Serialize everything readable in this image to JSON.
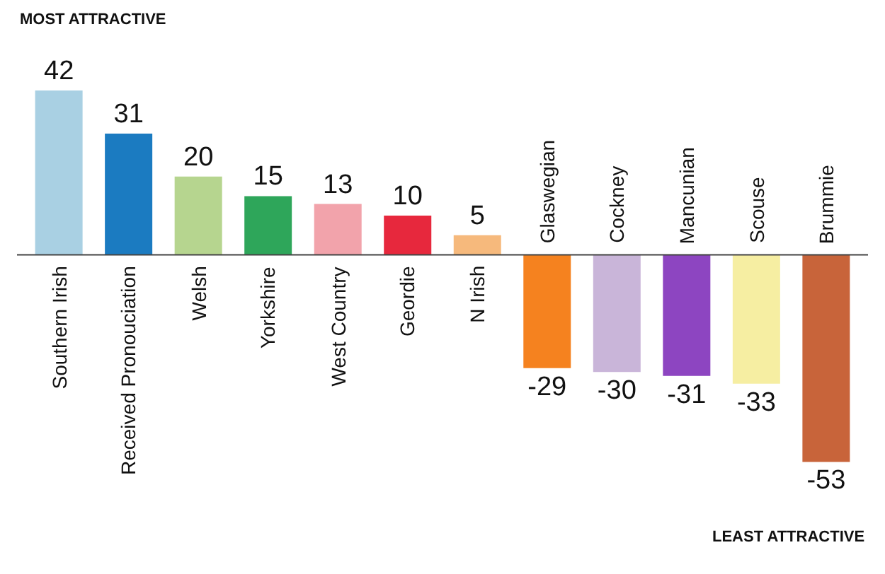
{
  "chart_data": {
    "type": "bar",
    "categories": [
      "Southern Irish",
      "Received Pronouciation",
      "Welsh",
      "Yorkshire",
      "West Country",
      "Geordie",
      "N Irish",
      "Glaswegian",
      "Cockney",
      "Mancunian",
      "Scouse",
      "Brummie"
    ],
    "values": [
      42,
      31,
      20,
      15,
      13,
      10,
      5,
      -29,
      -30,
      -31,
      -33,
      -53
    ],
    "colors": [
      "#a9d0e3",
      "#1b7bc1",
      "#b6d58f",
      "#2ea65a",
      "#f2a3ab",
      "#e7283d",
      "#f6b97c",
      "#f5821f",
      "#c9b5d9",
      "#8d45c1",
      "#f6eea2",
      "#c8643a"
    ],
    "data_labels": true,
    "annotations": [
      "MOST ATTRACTIVE",
      "LEAST ATTRACTIVE"
    ]
  }
}
